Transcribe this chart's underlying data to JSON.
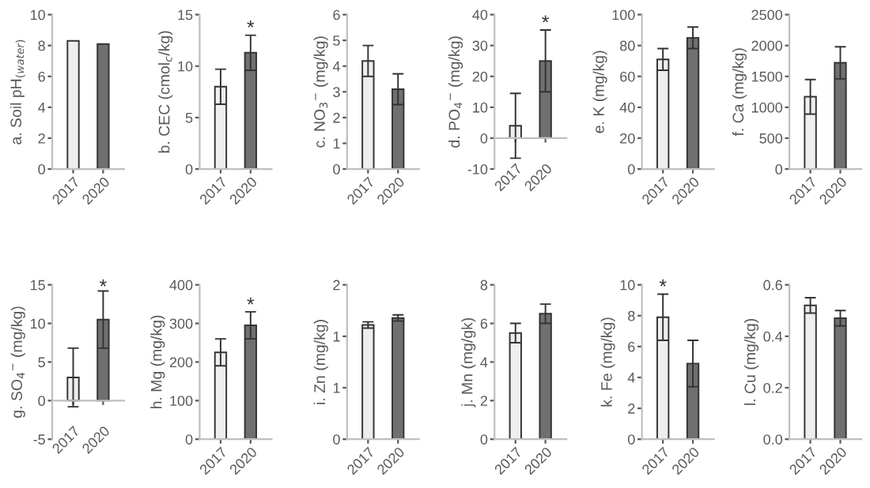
{
  "chart_data": [
    {
      "type": "bar",
      "categories": [
        "2017",
        "2020"
      ],
      "values": [
        8.3,
        8.1
      ],
      "colors": [
        "#eeeeee",
        "#707070"
      ],
      "ylabel": "a. Soil pH$_{(water)}$",
      "ylim": [
        0,
        10
      ],
      "yticks": [
        0,
        2,
        4,
        6,
        8,
        10
      ]
    },
    {
      "type": "bar",
      "categories": [
        "2017",
        "2020"
      ],
      "values": [
        8.0,
        11.3
      ],
      "errors": [
        1.7,
        1.7
      ],
      "colors": [
        "#eeeeee",
        "#707070"
      ],
      "ylabel": "b. CEC (cmol$_{c}$/kg)",
      "ylim": [
        0,
        15
      ],
      "yticks": [
        0,
        5,
        10,
        15
      ],
      "annotations": [
        {
          "text": "*",
          "x": "2020",
          "y": 13.6
        }
      ]
    },
    {
      "type": "bar",
      "categories": [
        "2017",
        "2020"
      ],
      "values": [
        4.2,
        3.1
      ],
      "errors": [
        0.6,
        0.6
      ],
      "colors": [
        "#eeeeee",
        "#707070"
      ],
      "ylabel": "c. NO$_{3}$$^{−}$ (mg/kg)",
      "ylim": [
        0,
        6
      ],
      "yticks": [
        0,
        1,
        2,
        3,
        4,
        5,
        6
      ]
    },
    {
      "type": "bar",
      "categories": [
        "2017",
        "2020"
      ],
      "values": [
        4,
        25
      ],
      "errors": [
        10.5,
        10
      ],
      "colors": [
        "#eeeeee",
        "#707070"
      ],
      "ylabel": "d. PO$_{4}$$^{−}$ (mg/kg)",
      "ylim": [
        -10,
        40
      ],
      "yticks": [
        -10,
        0,
        10,
        20,
        30,
        40
      ],
      "annotations": [
        {
          "text": "*",
          "x": "2020",
          "y": 37
        }
      ]
    },
    {
      "type": "bar",
      "categories": [
        "2017",
        "2020"
      ],
      "values": [
        71,
        85
      ],
      "errors": [
        7,
        7
      ],
      "colors": [
        "#eeeeee",
        "#707070"
      ],
      "ylabel": "e. K (mg/kg)",
      "ylim": [
        0,
        100
      ],
      "yticks": [
        0,
        20,
        40,
        60,
        80,
        100
      ]
    },
    {
      "type": "bar",
      "categories": [
        "2017",
        "2020"
      ],
      "values": [
        1170,
        1720
      ],
      "errors": [
        280,
        260
      ],
      "colors": [
        "#eeeeee",
        "#707070"
      ],
      "ylabel": "f. Ca (mg/kg)",
      "ylim": [
        0,
        2500
      ],
      "yticks": [
        0,
        500,
        1000,
        1500,
        2000,
        2500
      ]
    },
    {
      "type": "bar",
      "categories": [
        "2017",
        "2020"
      ],
      "values": [
        3,
        10.5
      ],
      "errors": [
        3.8,
        3.7
      ],
      "colors": [
        "#eeeeee",
        "#707070"
      ],
      "ylabel": "g. SO$_{4}$$^{−}$ (mg/kg)",
      "ylim": [
        -5,
        15
      ],
      "yticks": [
        -5,
        0,
        5,
        10,
        15
      ],
      "annotations": [
        {
          "text": "*",
          "x": "2020",
          "y": 14.6
        }
      ]
    },
    {
      "type": "bar",
      "categories": [
        "2017",
        "2020"
      ],
      "values": [
        225,
        295
      ],
      "errors": [
        35,
        35
      ],
      "colors": [
        "#eeeeee",
        "#707070"
      ],
      "ylabel": "h. Mg (mg/kg)",
      "ylim": [
        0,
        400
      ],
      "yticks": [
        0,
        100,
        200,
        300,
        400
      ],
      "annotations": [
        {
          "text": "*",
          "x": "2020",
          "y": 345
        }
      ]
    },
    {
      "type": "bar",
      "categories": [
        "2017",
        "2020"
      ],
      "values": [
        1.48,
        1.57
      ],
      "errors": [
        0.04,
        0.04
      ],
      "colors": [
        "#eeeeee",
        "#707070"
      ],
      "ylabel": "i. Zn (mg/kg)",
      "ylim": [
        0,
        2
      ],
      "yticks": [
        0,
        {
          "value": 0.667,
          "label": "1"
        },
        {
          "value": 1.333,
          "label": "1"
        },
        2
      ]
    },
    {
      "type": "bar",
      "categories": [
        "2017",
        "2020"
      ],
      "values": [
        5.5,
        6.5
      ],
      "errors": [
        0.5,
        0.5
      ],
      "colors": [
        "#eeeeee",
        "#707070"
      ],
      "ylabel": "j. Mn (mg/gk)",
      "ylim": [
        0,
        8
      ],
      "yticks": [
        0,
        2,
        4,
        6,
        8
      ]
    },
    {
      "type": "bar",
      "categories": [
        "2017",
        "2020"
      ],
      "values": [
        7.9,
        4.9
      ],
      "errors": [
        1.5,
        1.5
      ],
      "colors": [
        "#eeeeee",
        "#707070"
      ],
      "ylabel": "k. Fe (mg/kg)",
      "ylim": [
        0,
        10
      ],
      "yticks": [
        0,
        2,
        4,
        6,
        8,
        10
      ],
      "annotations": [
        {
          "text": "*",
          "x": "2017",
          "y": 9.8
        }
      ]
    },
    {
      "type": "bar",
      "categories": [
        "2017",
        "2020"
      ],
      "values": [
        0.52,
        0.47
      ],
      "errors": [
        0.03,
        0.03
      ],
      "colors": [
        "#eeeeee",
        "#707070"
      ],
      "ylabel": "l. Cu (mg/kg)",
      "ylim": [
        0,
        0.6
      ],
      "yticks": [
        {
          "value": 0,
          "label": "0.0"
        },
        {
          "value": 0.2,
          "label": "0.2"
        },
        {
          "value": 0.4,
          "label": "0.4"
        },
        {
          "value": 0.6,
          "label": "0.6"
        }
      ]
    }
  ]
}
